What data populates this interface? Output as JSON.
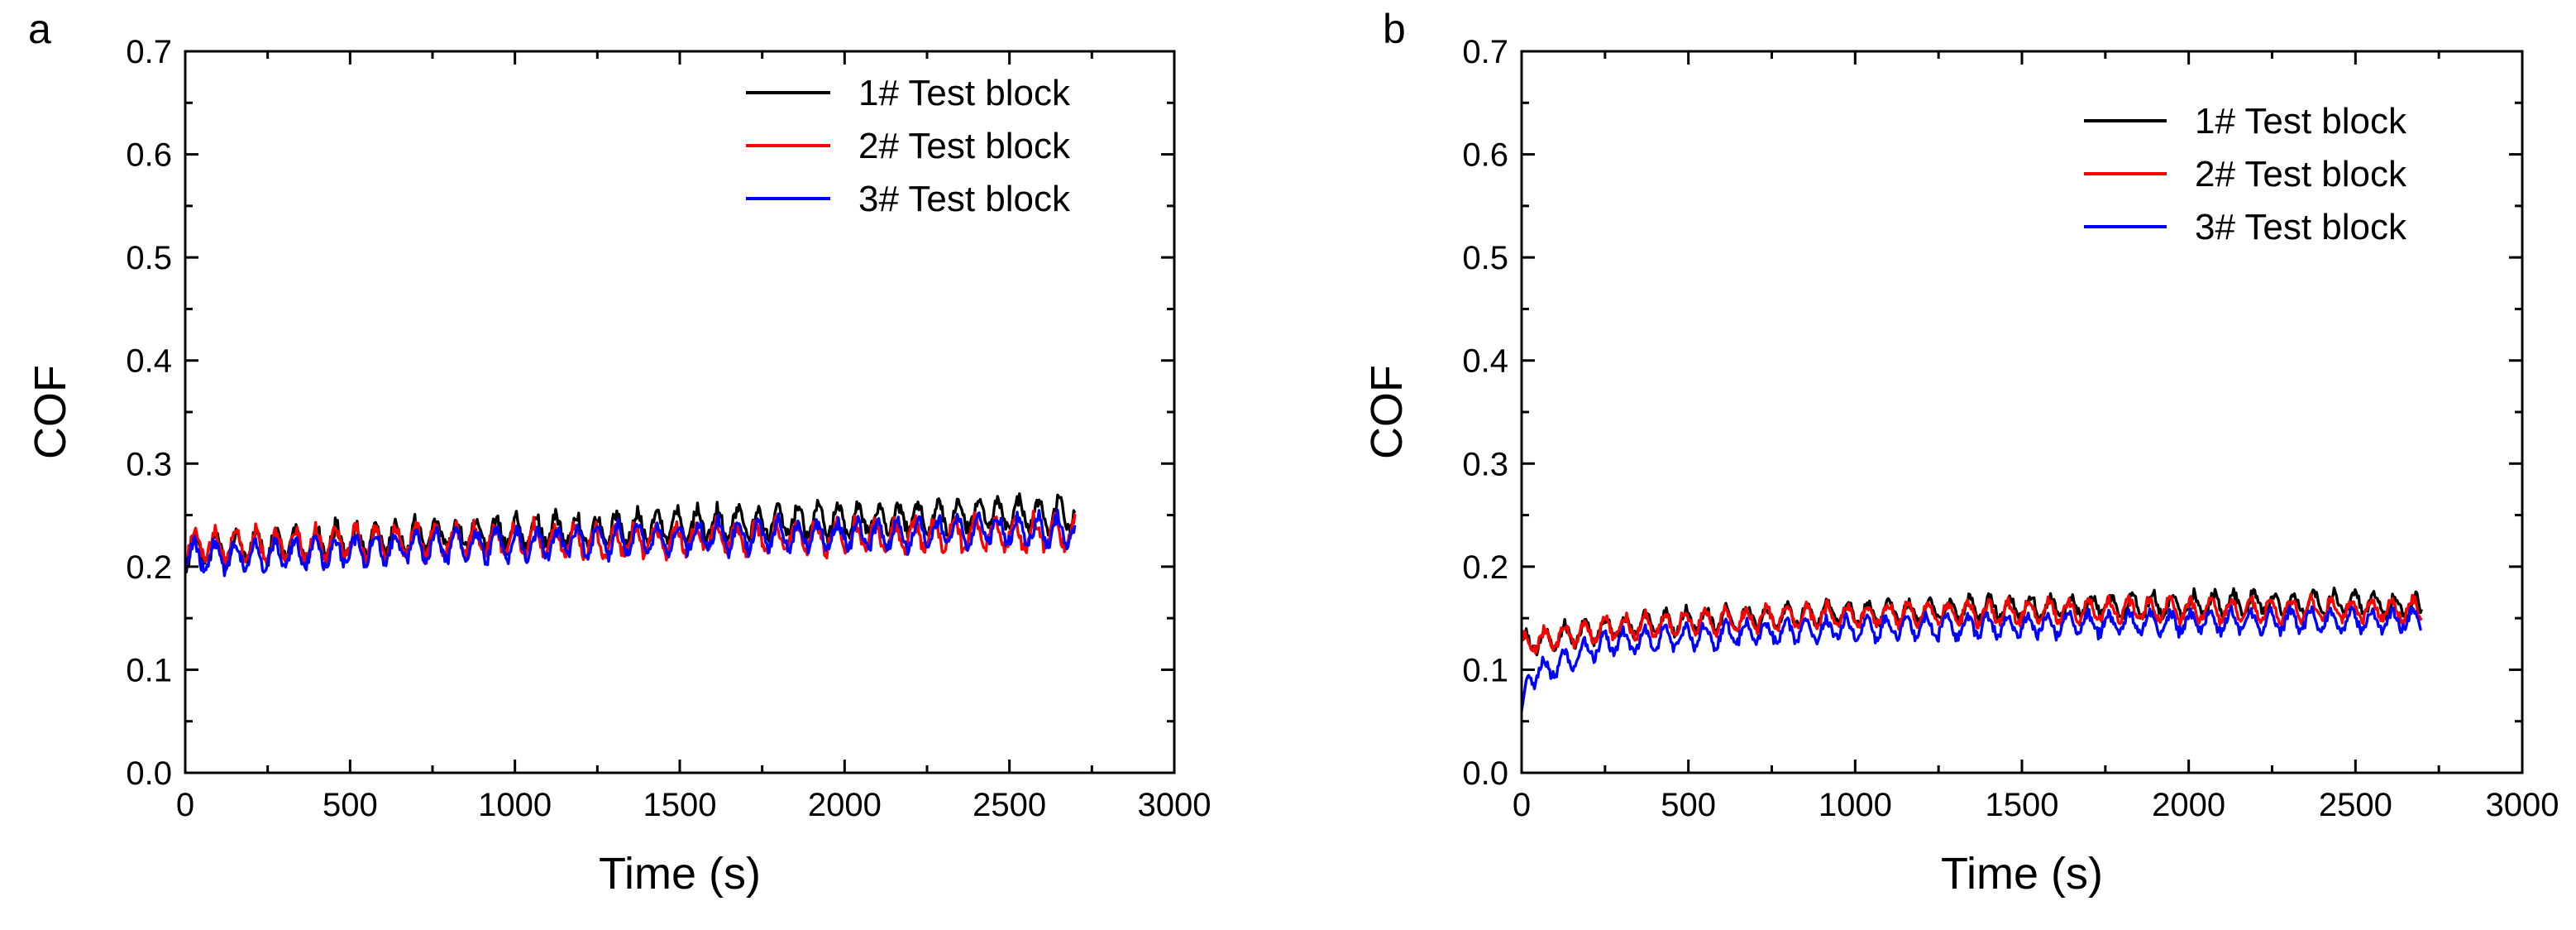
{
  "chart_data": [
    {
      "type": "line",
      "panel_label": "a",
      "title": "",
      "xlabel": "Time (s)",
      "ylabel": "COF",
      "xlim": [
        0,
        3000
      ],
      "ylim": [
        0.0,
        0.7
      ],
      "x_ticks": [
        0,
        500,
        1000,
        1500,
        2000,
        2500,
        3000
      ],
      "x_tick_labels": [
        "0",
        "500",
        "1000",
        "1500",
        "2000",
        "2500",
        "3000"
      ],
      "y_ticks": [
        0.0,
        0.1,
        0.2,
        0.3,
        0.4,
        0.5,
        0.6,
        0.7
      ],
      "y_tick_labels": [
        "0.0",
        "0.1",
        "0.2",
        "0.3",
        "0.4",
        "0.5",
        "0.6",
        "0.7"
      ],
      "grid": false,
      "legend_position": "top-right",
      "series": [
        {
          "name": "1# Test block",
          "color": "#000000",
          "x": [
            0,
            250,
            500,
            750,
            1000,
            1250,
            1500,
            1750,
            2000,
            2250,
            2500,
            2700
          ],
          "y": [
            0.215,
            0.22,
            0.225,
            0.23,
            0.233,
            0.236,
            0.24,
            0.242,
            0.245,
            0.248,
            0.25,
            0.25
          ],
          "amplitude": 0.014
        },
        {
          "name": "2# Test block",
          "color": "#ff0000",
          "x": [
            0,
            250,
            500,
            750,
            1000,
            1250,
            1500,
            1750,
            2000,
            2250,
            2500,
            2700
          ],
          "y": [
            0.22,
            0.22,
            0.222,
            0.225,
            0.226,
            0.224,
            0.226,
            0.228,
            0.228,
            0.23,
            0.232,
            0.232
          ],
          "amplitude": 0.014
        },
        {
          "name": "3# Test block",
          "color": "#0000ff",
          "x": [
            0,
            250,
            500,
            750,
            1000,
            1250,
            1500,
            1750,
            2000,
            2250,
            2500,
            2700
          ],
          "y": [
            0.21,
            0.212,
            0.215,
            0.22,
            0.222,
            0.225,
            0.228,
            0.23,
            0.23,
            0.232,
            0.235,
            0.235
          ],
          "amplitude": 0.013
        }
      ]
    },
    {
      "type": "line",
      "panel_label": "b",
      "title": "",
      "xlabel": "Time (s)",
      "ylabel": "COF",
      "xlim": [
        0,
        3000
      ],
      "ylim": [
        0.0,
        0.7
      ],
      "x_ticks": [
        0,
        500,
        1000,
        1500,
        2000,
        2500,
        3000
      ],
      "x_tick_labels": [
        "0",
        "500",
        "1000",
        "1500",
        "2000",
        "2500",
        "3000"
      ],
      "y_ticks": [
        0.0,
        0.1,
        0.2,
        0.3,
        0.4,
        0.5,
        0.6,
        0.7
      ],
      "y_tick_labels": [
        "0.0",
        "0.1",
        "0.2",
        "0.3",
        "0.4",
        "0.5",
        "0.6",
        "0.7"
      ],
      "grid": false,
      "legend_position": "top-right",
      "series": [
        {
          "name": "1# Test block",
          "color": "#000000",
          "x": [
            0,
            250,
            500,
            750,
            1000,
            1250,
            1500,
            1750,
            2000,
            2250,
            2500,
            2700
          ],
          "y": [
            0.125,
            0.14,
            0.148,
            0.152,
            0.155,
            0.158,
            0.16,
            0.162,
            0.163,
            0.165,
            0.165,
            0.16
          ],
          "amplitude": 0.01
        },
        {
          "name": "2# Test block",
          "color": "#ff0000",
          "x": [
            0,
            250,
            500,
            750,
            1000,
            1250,
            1500,
            1750,
            2000,
            2250,
            2500,
            2700
          ],
          "y": [
            0.125,
            0.14,
            0.146,
            0.15,
            0.153,
            0.155,
            0.156,
            0.157,
            0.158,
            0.158,
            0.158,
            0.158
          ],
          "amplitude": 0.01
        },
        {
          "name": "3# Test block",
          "color": "#0000ff",
          "x": [
            0,
            250,
            500,
            750,
            1000,
            1250,
            1500,
            1750,
            2000,
            2250,
            2500,
            2700
          ],
          "y": [
            0.09,
            0.125,
            0.133,
            0.137,
            0.14,
            0.142,
            0.143,
            0.145,
            0.146,
            0.147,
            0.148,
            0.148
          ],
          "amplitude": 0.01
        }
      ]
    }
  ]
}
